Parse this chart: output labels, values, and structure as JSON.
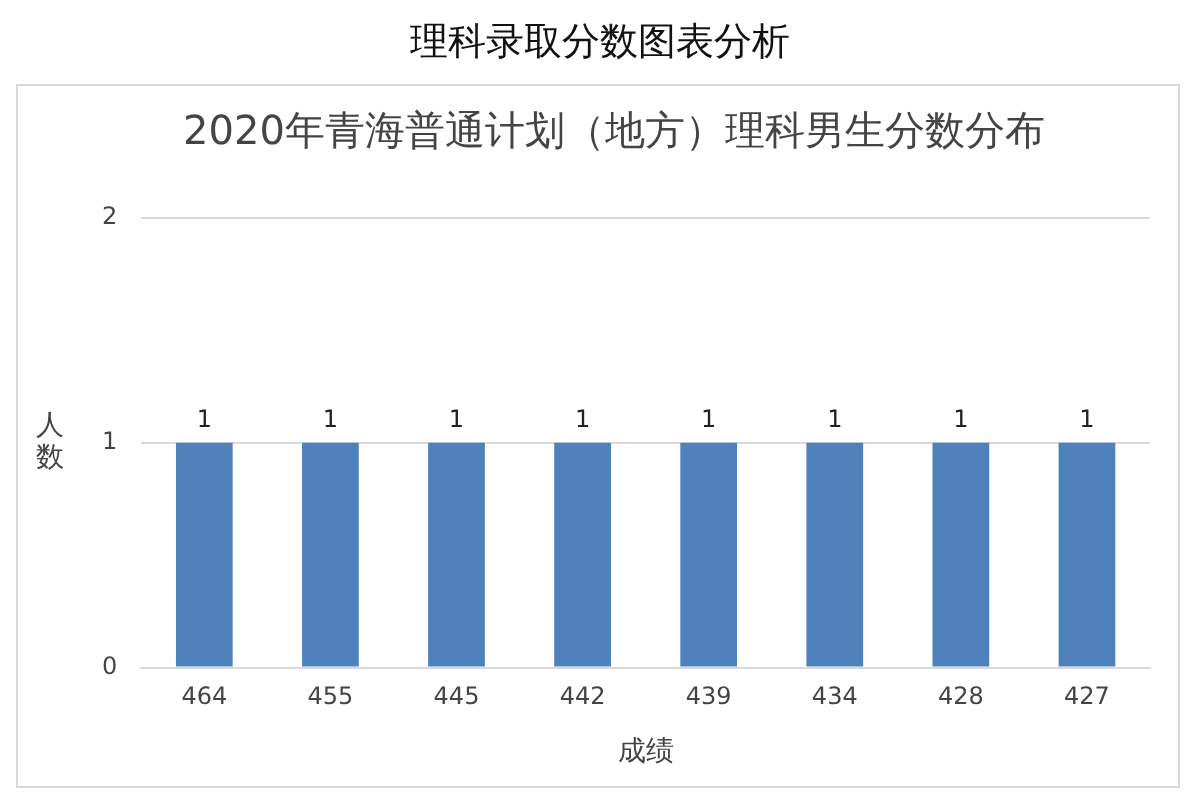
{
  "chart_data": {
    "type": "bar",
    "title": "理科录取分数图表分析",
    "subtitle": "2020年青海普通计划（地方）理科男生分数分布",
    "xlabel": "成绩",
    "ylabel": "人数",
    "categories": [
      "464",
      "455",
      "445",
      "442",
      "439",
      "434",
      "428",
      "427"
    ],
    "values": [
      1,
      1,
      1,
      1,
      1,
      1,
      1,
      1
    ],
    "color": "#4f81bd",
    "ylim": [
      0,
      2
    ],
    "yticks": [
      0,
      1,
      2
    ],
    "grid": "y",
    "data_labels": true
  }
}
